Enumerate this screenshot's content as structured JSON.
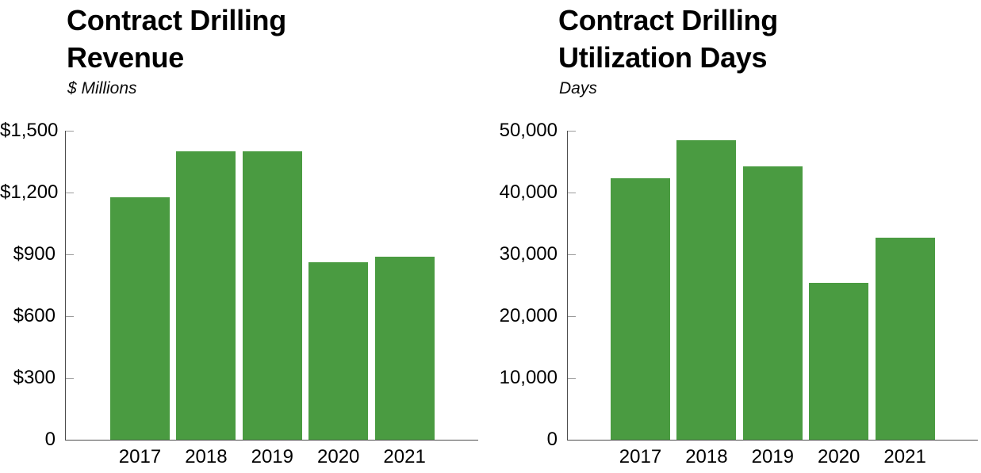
{
  "page": {
    "background": "#ffffff",
    "text_color": "#000000"
  },
  "chart_data": [
    {
      "type": "bar",
      "title": "Contract Drilling\nRevenue",
      "subtitle": "$ Millions",
      "categories": [
        "2017",
        "2018",
        "2019",
        "2020",
        "2021"
      ],
      "values": [
        1175,
        1400,
        1400,
        860,
        890
      ],
      "ylim": [
        0,
        1500
      ],
      "yticks": [
        1500,
        1200,
        900,
        600,
        300,
        0
      ],
      "ytick_labels": [
        "$1,500",
        "$1,200",
        "$900",
        "$600",
        "$300",
        "0"
      ],
      "xlabel": "",
      "ylabel": "$ Millions",
      "grid": false,
      "legend": "none",
      "bar_color": "#4a9b41",
      "axis_color": "#4d4d4d",
      "tick_color": "#9b9b9b"
    },
    {
      "type": "bar",
      "title": "Contract Drilling\nUtilization Days",
      "subtitle": "Days",
      "categories": [
        "2017",
        "2018",
        "2019",
        "2020",
        "2021"
      ],
      "values": [
        42300,
        48400,
        44200,
        25400,
        32650
      ],
      "ylim": [
        0,
        50000
      ],
      "yticks": [
        50000,
        40000,
        30000,
        20000,
        10000,
        0
      ],
      "ytick_labels": [
        "50,000",
        "40,000",
        "30,000",
        "20,000",
        "10,000",
        "0"
      ],
      "xlabel": "",
      "ylabel": "Days",
      "grid": false,
      "legend": "none",
      "bar_color": "#4a9b41",
      "axis_color": "#4d4d4d",
      "tick_color": "#9b9b9b"
    }
  ]
}
